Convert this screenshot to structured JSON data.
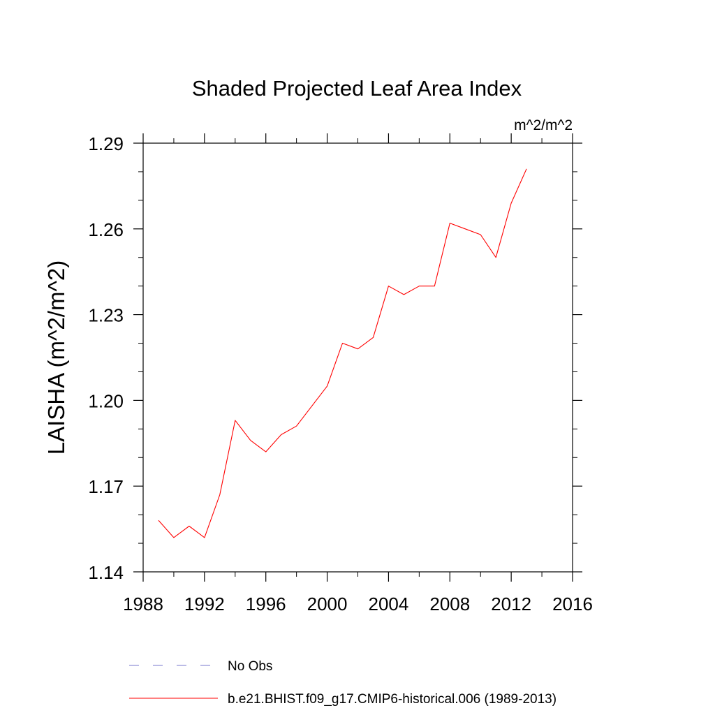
{
  "chart_data": {
    "type": "line",
    "title": "Shaded Projected Leaf Area Index",
    "units": "m^2/m^2",
    "ylabel": "LAISHA  (m^2/m^2)",
    "xlabel": "",
    "xlim": [
      1988,
      2016
    ],
    "ylim": [
      1.14,
      1.29
    ],
    "x_ticks": [
      "1988",
      "1992",
      "1996",
      "2000",
      "2004",
      "2008",
      "2012",
      "2016"
    ],
    "y_ticks": [
      "1.14",
      "1.17",
      "1.20",
      "1.23",
      "1.26",
      "1.29"
    ],
    "series": [
      {
        "name": "b.e21.BHIST.f09_g17.CMIP6-historical.006 (1989-2013)",
        "color": "#ff0000",
        "style": "solid",
        "x": [
          1989,
          1990,
          1991,
          1992,
          1993,
          1994,
          1995,
          1996,
          1997,
          1998,
          1999,
          2000,
          2001,
          2002,
          2003,
          2004,
          2005,
          2006,
          2007,
          2008,
          2009,
          2010,
          2011,
          2012,
          2013
        ],
        "y": [
          1.158,
          1.152,
          1.156,
          1.152,
          1.167,
          1.193,
          1.186,
          1.182,
          1.188,
          1.191,
          1.198,
          1.205,
          1.22,
          1.218,
          1.222,
          1.24,
          1.237,
          1.24,
          1.24,
          1.262,
          1.26,
          1.258,
          1.25,
          1.269,
          1.281
        ]
      }
    ],
    "legend": {
      "placement": "bottom",
      "entries": [
        {
          "label": "No Obs",
          "color": "#7777cc",
          "style": "dashed"
        },
        {
          "label": "b.e21.BHIST.f09_g17.CMIP6-historical.006 (1989-2013)",
          "color": "#ff0000",
          "style": "solid"
        }
      ]
    },
    "grid": false
  }
}
